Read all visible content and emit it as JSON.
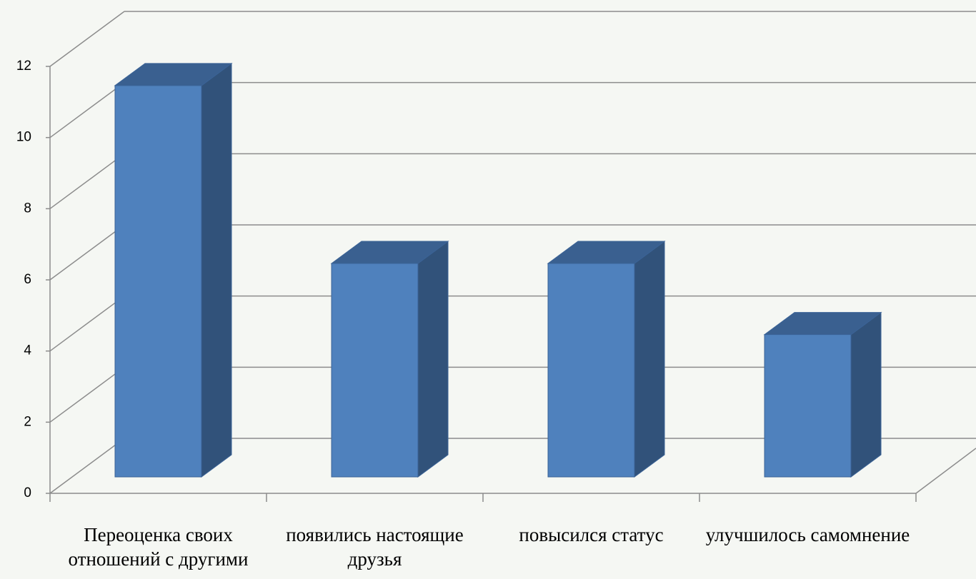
{
  "chart_data": {
    "type": "bar3d",
    "categories": [
      "Переоценка своих отношений с другими",
      "появились настоящие друзья",
      "повысился статус",
      "улучшилось самомнение"
    ],
    "values": [
      11,
      6,
      6,
      4
    ],
    "color": "#4f81bd",
    "ylim": [
      0,
      12
    ],
    "yticks": [
      0,
      2,
      4,
      6,
      8,
      10,
      12
    ],
    "grid": true
  }
}
